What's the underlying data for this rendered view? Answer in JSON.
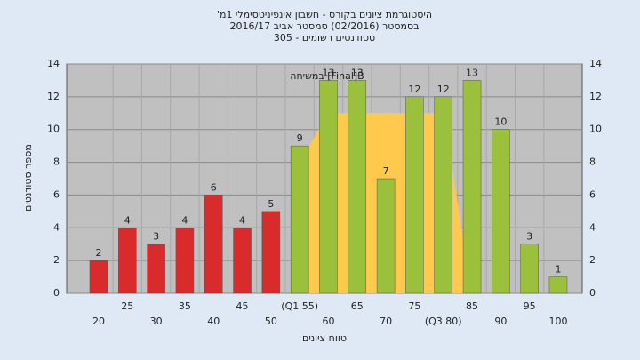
{
  "chart_data": {
    "type": "bar",
    "title_lines": [
      "היסטוגרמת ציונים בקורס - חשבון אינפיניטסימלי 1מ'",
      "בסמסטר (02/2016) סמסטר אביב 2016/17",
      "סטודנטים רשומים - 305"
    ],
    "ylabel": "מספר סטודנטים",
    "xlabel": "טווח ציונים",
    "annotation": "במשיחה [Final]B",
    "categories": [
      "20",
      "25",
      "30",
      "35",
      "40",
      "45",
      "50",
      "(Q1 55)",
      "60",
      "65",
      "70",
      "75",
      "(Q3 80)",
      "85",
      "90",
      "95",
      "100"
    ],
    "values": [
      2,
      4,
      3,
      4,
      6,
      4,
      5,
      9,
      13,
      13,
      7,
      12,
      12,
      13,
      10,
      3,
      1
    ],
    "colors": [
      "#d92b2b",
      "#d92b2b",
      "#d92b2b",
      "#d92b2b",
      "#d92b2b",
      "#d92b2b",
      "#d92b2b",
      "#9bc13c",
      "#9bc13c",
      "#9bc13c",
      "#9bc13c",
      "#9bc13c",
      "#9bc13c",
      "#9bc13c",
      "#9bc13c",
      "#9bc13c",
      "#9bc13c"
    ],
    "area": {
      "color": "#ffc94d",
      "values": [
        null,
        null,
        null,
        null,
        null,
        null,
        null,
        8,
        11,
        11,
        11,
        11,
        11,
        0,
        null,
        null,
        null
      ]
    },
    "ylim": [
      0,
      14
    ],
    "yticks": [
      0,
      2,
      4,
      6,
      8,
      10,
      12,
      14
    ],
    "grid": true
  }
}
